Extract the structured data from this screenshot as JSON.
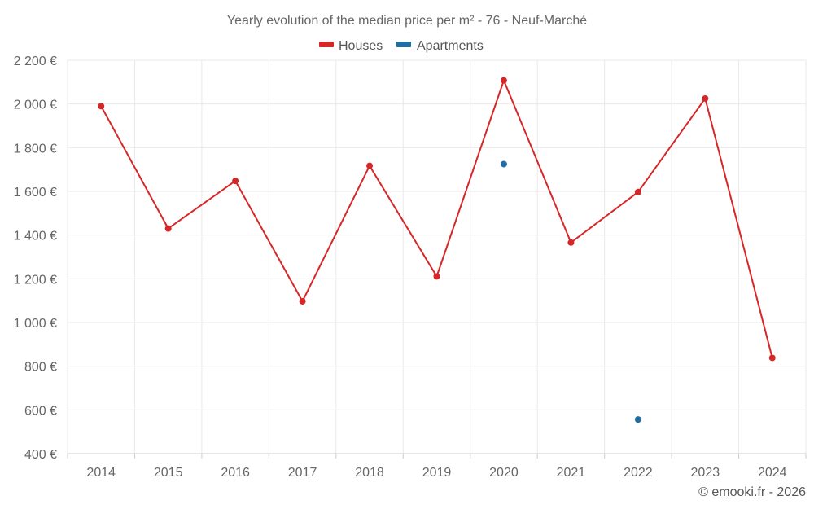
{
  "chart_data": {
    "type": "line",
    "title": "Yearly evolution of the median price per m² - 76 - Neuf-Marché",
    "categories": [
      "2014",
      "2015",
      "2016",
      "2017",
      "2018",
      "2019",
      "2020",
      "2021",
      "2022",
      "2023",
      "2024"
    ],
    "series": [
      {
        "name": "Houses",
        "color": "#d62728",
        "values": [
          1990,
          1430,
          1648,
          1097,
          1717,
          1211,
          2108,
          1366,
          1597,
          2025,
          838
        ]
      },
      {
        "name": "Apartments",
        "color": "#1f6fa6",
        "values": [
          null,
          null,
          null,
          null,
          null,
          null,
          1725,
          null,
          556,
          null,
          null
        ]
      }
    ],
    "ylim": [
      400,
      2200
    ],
    "yticks": [
      400,
      600,
      800,
      1000,
      1200,
      1400,
      1600,
      1800,
      2000,
      2200
    ],
    "ytick_labels": [
      "400 €",
      "600 €",
      "800 €",
      "1 000 €",
      "1 200 €",
      "1 400 €",
      "1 600 €",
      "1 800 €",
      "2 000 €",
      "2 200 €"
    ],
    "xlabel": "",
    "ylabel": "",
    "legend_position": "top",
    "grid": true
  },
  "footer": {
    "credit": "© emooki.fr - 2026"
  }
}
